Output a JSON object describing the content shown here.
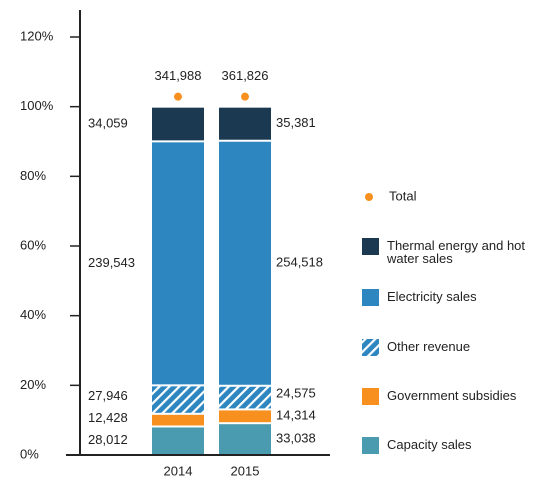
{
  "chart_data": {
    "type": "stacked_bar_100",
    "categories": [
      "2014",
      "2015"
    ],
    "series": [
      {
        "name": "Capacity sales",
        "color": "#4a9bb0",
        "values": [
          28012,
          33038
        ],
        "value_labels": [
          "28,012",
          "33,038"
        ]
      },
      {
        "name": "Government subsidies",
        "color": "#f7901e",
        "values": [
          12428,
          14314
        ],
        "value_labels": [
          "12,428",
          "14,314"
        ]
      },
      {
        "name": "Other revenue",
        "color": "#2e86c1",
        "pattern": "hatch",
        "values": [
          27946,
          24575
        ],
        "value_labels": [
          "27,946",
          "24,575"
        ]
      },
      {
        "name": "Electricity sales",
        "color": "#2e86c1",
        "values": [
          239543,
          254518
        ],
        "value_labels": [
          "239,543",
          "254,518"
        ]
      },
      {
        "name": "Thermal energy and hot water sales",
        "color": "#1b3a52",
        "values": [
          34059,
          35381
        ],
        "value_labels": [
          "34,059",
          "35,381"
        ]
      }
    ],
    "total": {
      "name": "Total",
      "color": "#f7901e",
      "values": [
        341988,
        361826
      ],
      "value_labels": [
        "341,988",
        "361,826"
      ]
    },
    "ylim": [
      0,
      120
    ],
    "yticks": [
      {
        "value": 0,
        "label": "0%"
      },
      {
        "value": 20,
        "label": "20%"
      },
      {
        "value": 40,
        "label": "40%"
      },
      {
        "value": 60,
        "label": "60%"
      },
      {
        "value": 80,
        "label": "80%"
      },
      {
        "value": 100,
        "label": "100%"
      },
      {
        "value": 120,
        "label": "120%"
      }
    ]
  }
}
